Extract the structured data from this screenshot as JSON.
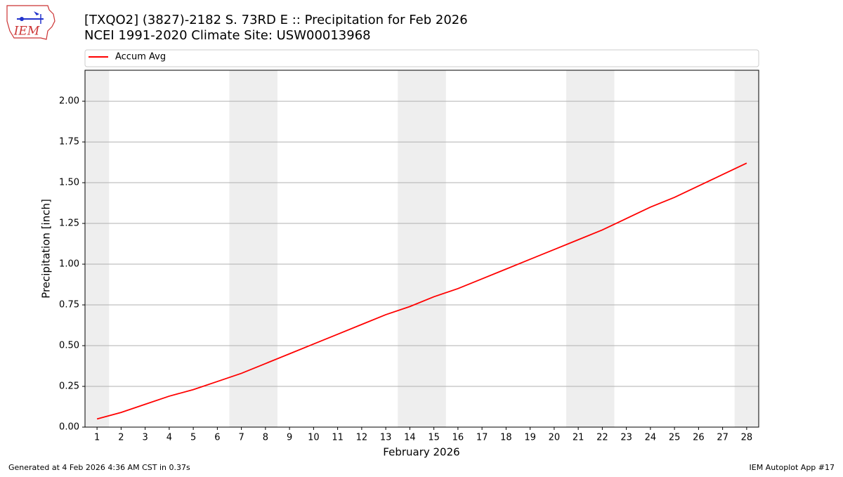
{
  "chart_data": {
    "type": "line",
    "title": "[TXQO2] (3827)-2182 S. 73RD E :: Precipitation for Feb 2026",
    "subtitle": "NCEI 1991-2020 Climate Site: USW00013968",
    "x_label": "February 2026",
    "y_label": "Precipitation [inch]",
    "logo_text": "IEM",
    "footer_left": "Generated at 4 Feb 2026 4:36 AM CST in 0.37s",
    "footer_right": "IEM Autoplot App #17",
    "x": [
      1,
      2,
      3,
      4,
      5,
      6,
      7,
      8,
      9,
      10,
      11,
      12,
      13,
      14,
      15,
      16,
      17,
      18,
      19,
      20,
      21,
      22,
      23,
      24,
      25,
      26,
      27,
      28
    ],
    "series": [
      {
        "name": "Accum Avg",
        "color": "#ff0000",
        "values": [
          0.05,
          0.09,
          0.14,
          0.19,
          0.23,
          0.28,
          0.33,
          0.39,
          0.45,
          0.51,
          0.57,
          0.63,
          0.69,
          0.74,
          0.8,
          0.85,
          0.91,
          0.97,
          1.03,
          1.09,
          1.15,
          1.21,
          1.28,
          1.35,
          1.41,
          1.48,
          1.55,
          1.62
        ]
      }
    ],
    "weekend_spans": [
      [
        0.5,
        1.5
      ],
      [
        6.5,
        8.5
      ],
      [
        13.5,
        15.5
      ],
      [
        20.5,
        22.5
      ],
      [
        27.5,
        28.5
      ]
    ],
    "span_color": "#eeeeee",
    "xlim": [
      0.5,
      28.5
    ],
    "ylim": [
      0,
      2.19
    ],
    "xticks": [
      1,
      2,
      3,
      4,
      5,
      6,
      7,
      8,
      9,
      10,
      11,
      12,
      13,
      14,
      15,
      16,
      17,
      18,
      19,
      20,
      21,
      22,
      23,
      24,
      25,
      26,
      27,
      28
    ],
    "yticks": [
      {
        "value": 0,
        "label": "0.00"
      },
      {
        "value": 0.25,
        "label": "0.25"
      },
      {
        "value": 0.5,
        "label": "0.50"
      },
      {
        "value": 0.75,
        "label": "0.75"
      },
      {
        "value": 1,
        "label": "1.00"
      },
      {
        "value": 1.25,
        "label": "1.25"
      },
      {
        "value": 1.5,
        "label": "1.50"
      },
      {
        "value": 1.75,
        "label": "1.75"
      },
      {
        "value": 2,
        "label": "2.00"
      }
    ],
    "grid": true,
    "legend": "top"
  }
}
